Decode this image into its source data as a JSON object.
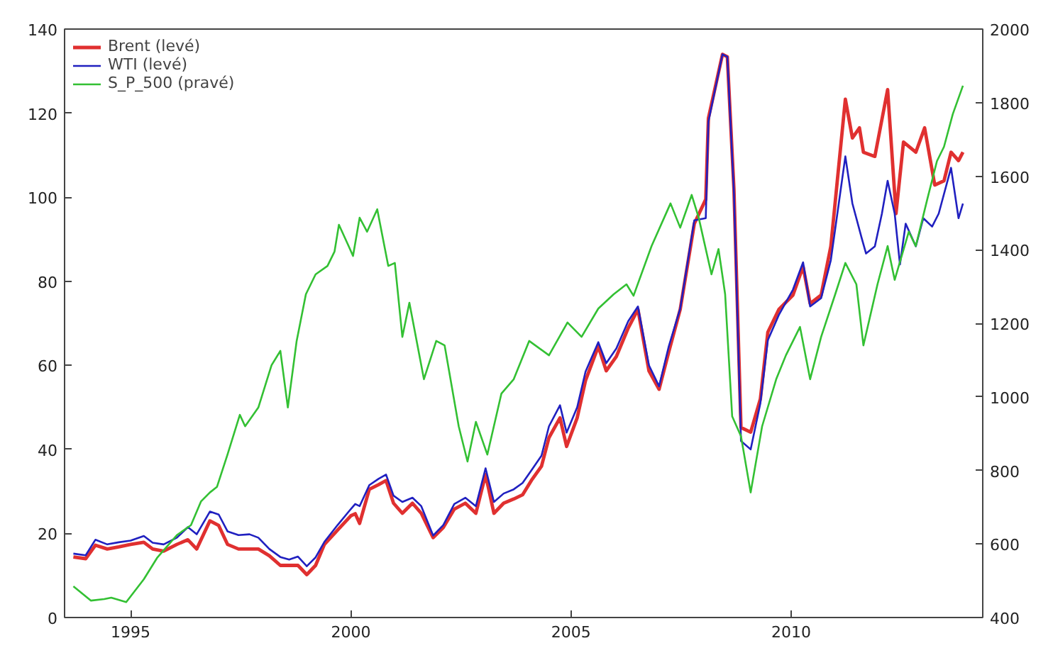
{
  "chart_data": {
    "type": "line",
    "xlim": [
      1993.5,
      2014.35
    ],
    "xticks": [
      1995,
      2000,
      2005,
      2010
    ],
    "ylim": [
      0,
      140
    ],
    "yticks": [
      0,
      20,
      40,
      60,
      80,
      100,
      120,
      140
    ],
    "y2lim": [
      400,
      2000
    ],
    "y2ticks": [
      400,
      600,
      800,
      1000,
      1200,
      1400,
      1600,
      1800,
      2000
    ],
    "grid": false,
    "legend": "top left",
    "marker": "none",
    "line_style": "solid",
    "series": [
      {
        "name": "Brent (levé)",
        "color": "#e03030",
        "x": [
          1993.7,
          1993.98,
          1994.2,
          1994.47,
          1994.73,
          1995.0,
          1995.3,
          1995.5,
          1995.75,
          1996.05,
          1996.3,
          1996.5,
          1996.8,
          1997.0,
          1997.2,
          1997.45,
          1997.7,
          1997.9,
          1998.15,
          1998.4,
          1998.6,
          1998.8,
          1999.0,
          1999.2,
          1999.4,
          1999.7,
          2000.0,
          2000.1,
          2000.2,
          2000.42,
          2000.63,
          2000.8,
          2000.97,
          2001.17,
          2001.4,
          2001.6,
          2001.87,
          2002.1,
          2002.35,
          2002.6,
          2002.84,
          2003.06,
          2003.25,
          2003.47,
          2003.7,
          2003.9,
          2004.1,
          2004.33,
          2004.5,
          2004.75,
          2004.9,
          2005.14,
          2005.33,
          2005.62,
          2005.8,
          2006.03,
          2006.3,
          2006.52,
          2006.77,
          2007.0,
          2007.22,
          2007.48,
          2007.8,
          2008.06,
          2008.12,
          2008.44,
          2008.55,
          2008.7,
          2008.86,
          2009.08,
          2009.3,
          2009.47,
          2009.72,
          2010.04,
          2010.27,
          2010.43,
          2010.68,
          2010.9,
          2011.23,
          2011.39,
          2011.55,
          2011.64,
          2011.9,
          2012.19,
          2012.38,
          2012.55,
          2012.83,
          2013.03,
          2013.26,
          2013.47,
          2013.63,
          2013.8,
          2013.9
        ],
        "values": [
          14.4,
          14,
          17.2,
          16.3,
          16.8,
          17.4,
          17.9,
          16.3,
          15.8,
          17.4,
          18.5,
          16.3,
          23,
          21.9,
          17.4,
          16.3,
          16.3,
          16.3,
          14.7,
          12.4,
          12.4,
          12.4,
          10.2,
          12.4,
          17.4,
          20.8,
          24.2,
          24.7,
          22.4,
          30.5,
          31.6,
          32.6,
          27.2,
          24.8,
          27.2,
          24.8,
          19,
          21.4,
          25.8,
          27.2,
          24.8,
          34,
          24.8,
          27.2,
          28.2,
          29.2,
          32.6,
          36,
          42.8,
          47.5,
          40.7,
          47.5,
          56.4,
          64.5,
          58.7,
          62.1,
          68.9,
          73.3,
          58.7,
          54.3,
          63.2,
          73.3,
          93.7,
          99.5,
          118.8,
          134,
          133.4,
          101.9,
          45.2,
          44.1,
          52,
          67.9,
          73.3,
          76.7,
          83.5,
          74.7,
          76.7,
          88.3,
          123.3,
          114.1,
          116.5,
          110.7,
          109.7,
          125.6,
          96.1,
          113.1,
          110.7,
          116.5,
          102.9,
          103.9,
          110.7,
          108.7,
          110.7
        ]
      },
      {
        "name": "WTI (levé)",
        "color": "#2020c0",
        "x": [
          1993.7,
          1993.98,
          1994.2,
          1994.47,
          1994.73,
          1995.0,
          1995.3,
          1995.5,
          1995.75,
          1996.05,
          1996.3,
          1996.5,
          1996.8,
          1997.0,
          1997.2,
          1997.45,
          1997.7,
          1997.9,
          1998.15,
          1998.4,
          1998.6,
          1998.8,
          1999.0,
          1999.2,
          1999.4,
          1999.7,
          2000.0,
          2000.1,
          2000.2,
          2000.42,
          2000.63,
          2000.8,
          2000.97,
          2001.17,
          2001.4,
          2001.6,
          2001.87,
          2002.1,
          2002.35,
          2002.6,
          2002.84,
          2003.06,
          2003.25,
          2003.47,
          2003.7,
          2003.9,
          2004.1,
          2004.33,
          2004.5,
          2004.75,
          2004.9,
          2005.14,
          2005.33,
          2005.62,
          2005.8,
          2006.03,
          2006.3,
          2006.52,
          2006.77,
          2007.0,
          2007.22,
          2007.48,
          2007.8,
          2008.06,
          2008.12,
          2008.44,
          2008.55,
          2008.7,
          2008.86,
          2009.08,
          2009.3,
          2009.47,
          2009.72,
          2010.04,
          2010.27,
          2010.43,
          2010.68,
          2010.9,
          2011.23,
          2011.39,
          2011.6,
          2011.7,
          2011.9,
          2012.06,
          2012.19,
          2012.35,
          2012.47,
          2012.6,
          2012.83,
          2013.0,
          2013.2,
          2013.35,
          2013.63,
          2013.8,
          2013.9
        ],
        "values": [
          15.2,
          14.8,
          18.5,
          17.4,
          17.9,
          18.3,
          19.4,
          17.8,
          17.4,
          19,
          21.5,
          19.8,
          25.2,
          24.5,
          20.5,
          19.6,
          19.8,
          19,
          16.3,
          14.4,
          13.8,
          14.5,
          12.2,
          14.3,
          18,
          22,
          25.8,
          27,
          26.5,
          31.5,
          33,
          34,
          29,
          27.5,
          28.5,
          26.5,
          19.5,
          22,
          27,
          28.5,
          26.5,
          35.5,
          27.5,
          29.5,
          30.5,
          32,
          35,
          38.5,
          45.5,
          50.5,
          44,
          50,
          58.5,
          65.5,
          60.5,
          64,
          70.5,
          74,
          60,
          55,
          64.5,
          73.5,
          94.5,
          95,
          118,
          134,
          133.4,
          101,
          42,
          40,
          51,
          66,
          72,
          78,
          84.5,
          74,
          76,
          85,
          109.7,
          98.5,
          90.3,
          86.6,
          88.3,
          96.1,
          103.9,
          96.1,
          84,
          93.7,
          88.3,
          95,
          93,
          96.1,
          107,
          95,
          98.5
        ]
      },
      {
        "name": "S_P_500 (pravé)",
        "color": "#33c033",
        "axis": "y2",
        "x": [
          1993.7,
          1994.1,
          1994.4,
          1994.56,
          1994.9,
          1995.3,
          1995.6,
          1996.05,
          1996.37,
          1996.6,
          1996.8,
          1996.96,
          1997.2,
          1997.48,
          1997.6,
          1997.9,
          1998.2,
          1998.4,
          1998.57,
          1998.77,
          1998.98,
          1999.2,
          1999.47,
          1999.63,
          1999.73,
          1999.95,
          2000.05,
          2000.2,
          2000.37,
          2000.6,
          2000.85,
          2001.0,
          2001.17,
          2001.33,
          2001.66,
          2001.94,
          2002.13,
          2002.45,
          2002.65,
          2002.84,
          2003.1,
          2003.42,
          2003.7,
          2004.05,
          2004.5,
          2004.92,
          2005.24,
          2005.62,
          2005.97,
          2006.26,
          2006.42,
          2006.83,
          2007.26,
          2007.48,
          2007.74,
          2007.9,
          2008.19,
          2008.35,
          2008.5,
          2008.66,
          2008.86,
          2009.08,
          2009.34,
          2009.66,
          2009.88,
          2010.2,
          2010.43,
          2010.68,
          2011.0,
          2011.23,
          2011.48,
          2011.64,
          2011.96,
          2012.19,
          2012.35,
          2012.67,
          2012.83,
          2013.09,
          2013.31,
          2013.47,
          2013.67,
          2013.9
        ],
        "values": [
          485,
          446,
          450,
          454,
          442,
          504,
          562,
          624,
          651,
          716,
          740,
          755,
          843,
          951,
          920,
          971,
          1086,
          1125,
          971,
          1152,
          1279,
          1333,
          1356,
          1395,
          1468,
          1410,
          1383,
          1487,
          1449,
          1510,
          1356,
          1364,
          1163,
          1256,
          1048,
          1152,
          1140,
          920,
          824,
          932,
          843,
          1009,
          1048,
          1152,
          1113,
          1202,
          1163,
          1240,
          1279,
          1306,
          1275,
          1410,
          1526,
          1460,
          1549,
          1487,
          1333,
          1402,
          1279,
          947,
          893,
          740,
          920,
          1048,
          1113,
          1190,
          1048,
          1163,
          1279,
          1364,
          1306,
          1140,
          1306,
          1410,
          1318,
          1449,
          1410,
          1537,
          1641,
          1680,
          1769,
          1846
        ]
      }
    ]
  }
}
